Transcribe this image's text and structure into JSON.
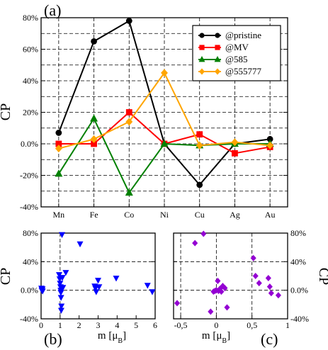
{
  "chart_data": [
    {
      "panel_label": "(a)",
      "type": "line",
      "ylabel": "CP",
      "xlabel": "",
      "categories": [
        "Mn",
        "Fe",
        "Co",
        "Ni",
        "Cu",
        "Ag",
        "Au"
      ],
      "ylim": [
        -40,
        80
      ],
      "yticks": [
        "-40%",
        "-20%",
        "0.0%",
        "20%",
        "40%",
        "60%",
        "80%"
      ],
      "grid": true,
      "legend_position": "top-right",
      "series": [
        {
          "name": "@pristine",
          "color": "#000000",
          "marker": "circle",
          "values": [
            7,
            65,
            78,
            0,
            -26,
            0,
            3
          ]
        },
        {
          "name": "@MV",
          "color": "#ff0000",
          "marker": "square",
          "values": [
            0,
            0,
            20,
            0,
            6,
            -6,
            -2
          ]
        },
        {
          "name": "@585",
          "color": "#008000",
          "marker": "triangle-up",
          "values": [
            -19,
            16,
            -31,
            0,
            -1,
            0,
            0
          ]
        },
        {
          "name": "@555777",
          "color": "#ffa500",
          "marker": "diamond",
          "values": [
            -3,
            3,
            14,
            45,
            -1,
            1,
            -1
          ]
        }
      ]
    },
    {
      "panel_label": "(b)",
      "type": "scatter",
      "ylabel": "CP",
      "xlabel": "m [μ",
      "xlabel_sub": "B",
      "xlabel_end": "]",
      "xlim": [
        0,
        6
      ],
      "xticks": [
        "0",
        "1",
        "2",
        "3",
        "4",
        "5",
        "6"
      ],
      "ylim": [
        -40,
        80
      ],
      "yticks": [
        "-40%",
        "0.0%",
        "40%",
        "80%"
      ],
      "marker": "triangle-down",
      "color": "#0000ff",
      "points": [
        [
          0.02,
          3
        ],
        [
          0.04,
          0
        ],
        [
          0.05,
          1
        ],
        [
          0.07,
          2
        ],
        [
          0.08,
          -1
        ],
        [
          0.95,
          22
        ],
        [
          0.98,
          16
        ],
        [
          1.0,
          10
        ],
        [
          1.02,
          5
        ],
        [
          1.03,
          0
        ],
        [
          1.04,
          -3
        ],
        [
          1.05,
          -10
        ],
        [
          1.06,
          -28
        ],
        [
          1.07,
          -22
        ],
        [
          1.1,
          78
        ],
        [
          1.12,
          18
        ],
        [
          1.15,
          4
        ],
        [
          1.3,
          25
        ],
        [
          2.05,
          65
        ],
        [
          2.82,
          6
        ],
        [
          2.86,
          3
        ],
        [
          2.9,
          -2
        ],
        [
          3.0,
          14
        ],
        [
          3.05,
          5
        ],
        [
          3.95,
          17
        ],
        [
          5.6,
          7
        ],
        [
          5.85,
          -2
        ]
      ]
    },
    {
      "panel_label": "(c)",
      "type": "scatter",
      "ylabel": "CP",
      "xlabel": "m [μ",
      "xlabel_sub": "B",
      "xlabel_end": "]",
      "xlim": [
        -0.6,
        1.0
      ],
      "xticks": [
        "-0,5",
        "0",
        "0,5",
        "1"
      ],
      "ylim": [
        -40,
        80
      ],
      "yticks": [
        "-40%",
        "0.0%",
        "40%",
        "80%"
      ],
      "marker": "diamond",
      "color": "#9400d3",
      "points": [
        [
          -0.55,
          -18
        ],
        [
          -0.3,
          66
        ],
        [
          -0.18,
          79
        ],
        [
          -0.08,
          -30
        ],
        [
          -0.04,
          -2
        ],
        [
          -0.02,
          -1
        ],
        [
          0.0,
          0
        ],
        [
          0.02,
          13
        ],
        [
          0.03,
          -1
        ],
        [
          0.05,
          2
        ],
        [
          0.07,
          -2
        ],
        [
          0.09,
          6
        ],
        [
          0.12,
          3
        ],
        [
          0.15,
          -24
        ],
        [
          0.52,
          45
        ],
        [
          0.55,
          20
        ],
        [
          0.6,
          10
        ],
        [
          0.73,
          17
        ],
        [
          0.75,
          5
        ],
        [
          0.77,
          -4
        ],
        [
          0.87,
          -7
        ]
      ]
    }
  ]
}
